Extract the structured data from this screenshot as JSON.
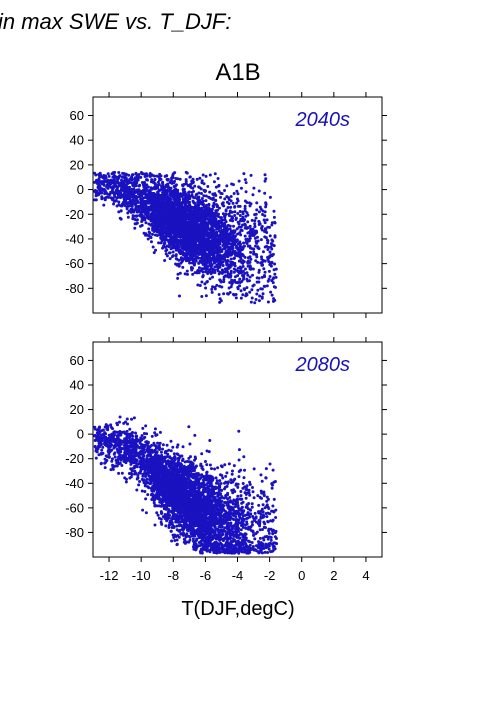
{
  "figure": {
    "top_title": "in max SWE vs. T_DJF:",
    "scenario": "A1B",
    "xlabel": "T(DJF,degC)"
  },
  "colors": {
    "points": "#1a12c0",
    "panel_label": "#1a12b8",
    "frame": "#000000"
  },
  "chart_data": [
    {
      "type": "scatter",
      "panel_label": "2040s",
      "xlim": [
        -13,
        5
      ],
      "ylim": [
        -100,
        75
      ],
      "xticks": [
        -12,
        -10,
        -8,
        -6,
        -4,
        -2,
        0,
        2,
        4
      ],
      "yticks": [
        60,
        40,
        20,
        0,
        -20,
        -40,
        -60,
        -80
      ],
      "x_tick_labels_shown": false,
      "grid": false,
      "density_anchors": [
        {
          "x": -12.5,
          "y": 3
        },
        {
          "x": -11.5,
          "y": 2
        },
        {
          "x": -10.5,
          "y": -5
        },
        {
          "x": -9.5,
          "y": -12
        },
        {
          "x": -8.5,
          "y": -20
        },
        {
          "x": -7.5,
          "y": -28
        },
        {
          "x": -6.5,
          "y": -34
        },
        {
          "x": -5.5,
          "y": -40
        },
        {
          "x": -4.5,
          "y": -46
        },
        {
          "x": -3.5,
          "y": -45
        },
        {
          "x": -2.5,
          "y": -48
        },
        {
          "x": -1.5,
          "y": -62
        }
      ]
    },
    {
      "type": "scatter",
      "panel_label": "2080s",
      "xlim": [
        -13,
        5
      ],
      "ylim": [
        -100,
        75
      ],
      "xticks": [
        -12,
        -10,
        -8,
        -6,
        -4,
        -2,
        0,
        2,
        4
      ],
      "xtick_labels": [
        "-12",
        "-10",
        "-8",
        "-6",
        "-4",
        "-2",
        "0",
        "2",
        "4"
      ],
      "yticks": [
        60,
        40,
        20,
        0,
        -20,
        -40,
        -60,
        -80
      ],
      "grid": false,
      "density_anchors": [
        {
          "x": -12.5,
          "y": -5
        },
        {
          "x": -11.5,
          "y": -8
        },
        {
          "x": -10.5,
          "y": -15
        },
        {
          "x": -9.5,
          "y": -28
        },
        {
          "x": -8.5,
          "y": -40
        },
        {
          "x": -7.5,
          "y": -50
        },
        {
          "x": -6.5,
          "y": -60
        },
        {
          "x": -5.5,
          "y": -68
        },
        {
          "x": -4.5,
          "y": -75
        },
        {
          "x": -3.5,
          "y": -78
        },
        {
          "x": -2.5,
          "y": -76
        },
        {
          "x": -1.5,
          "y": -75
        }
      ]
    }
  ]
}
